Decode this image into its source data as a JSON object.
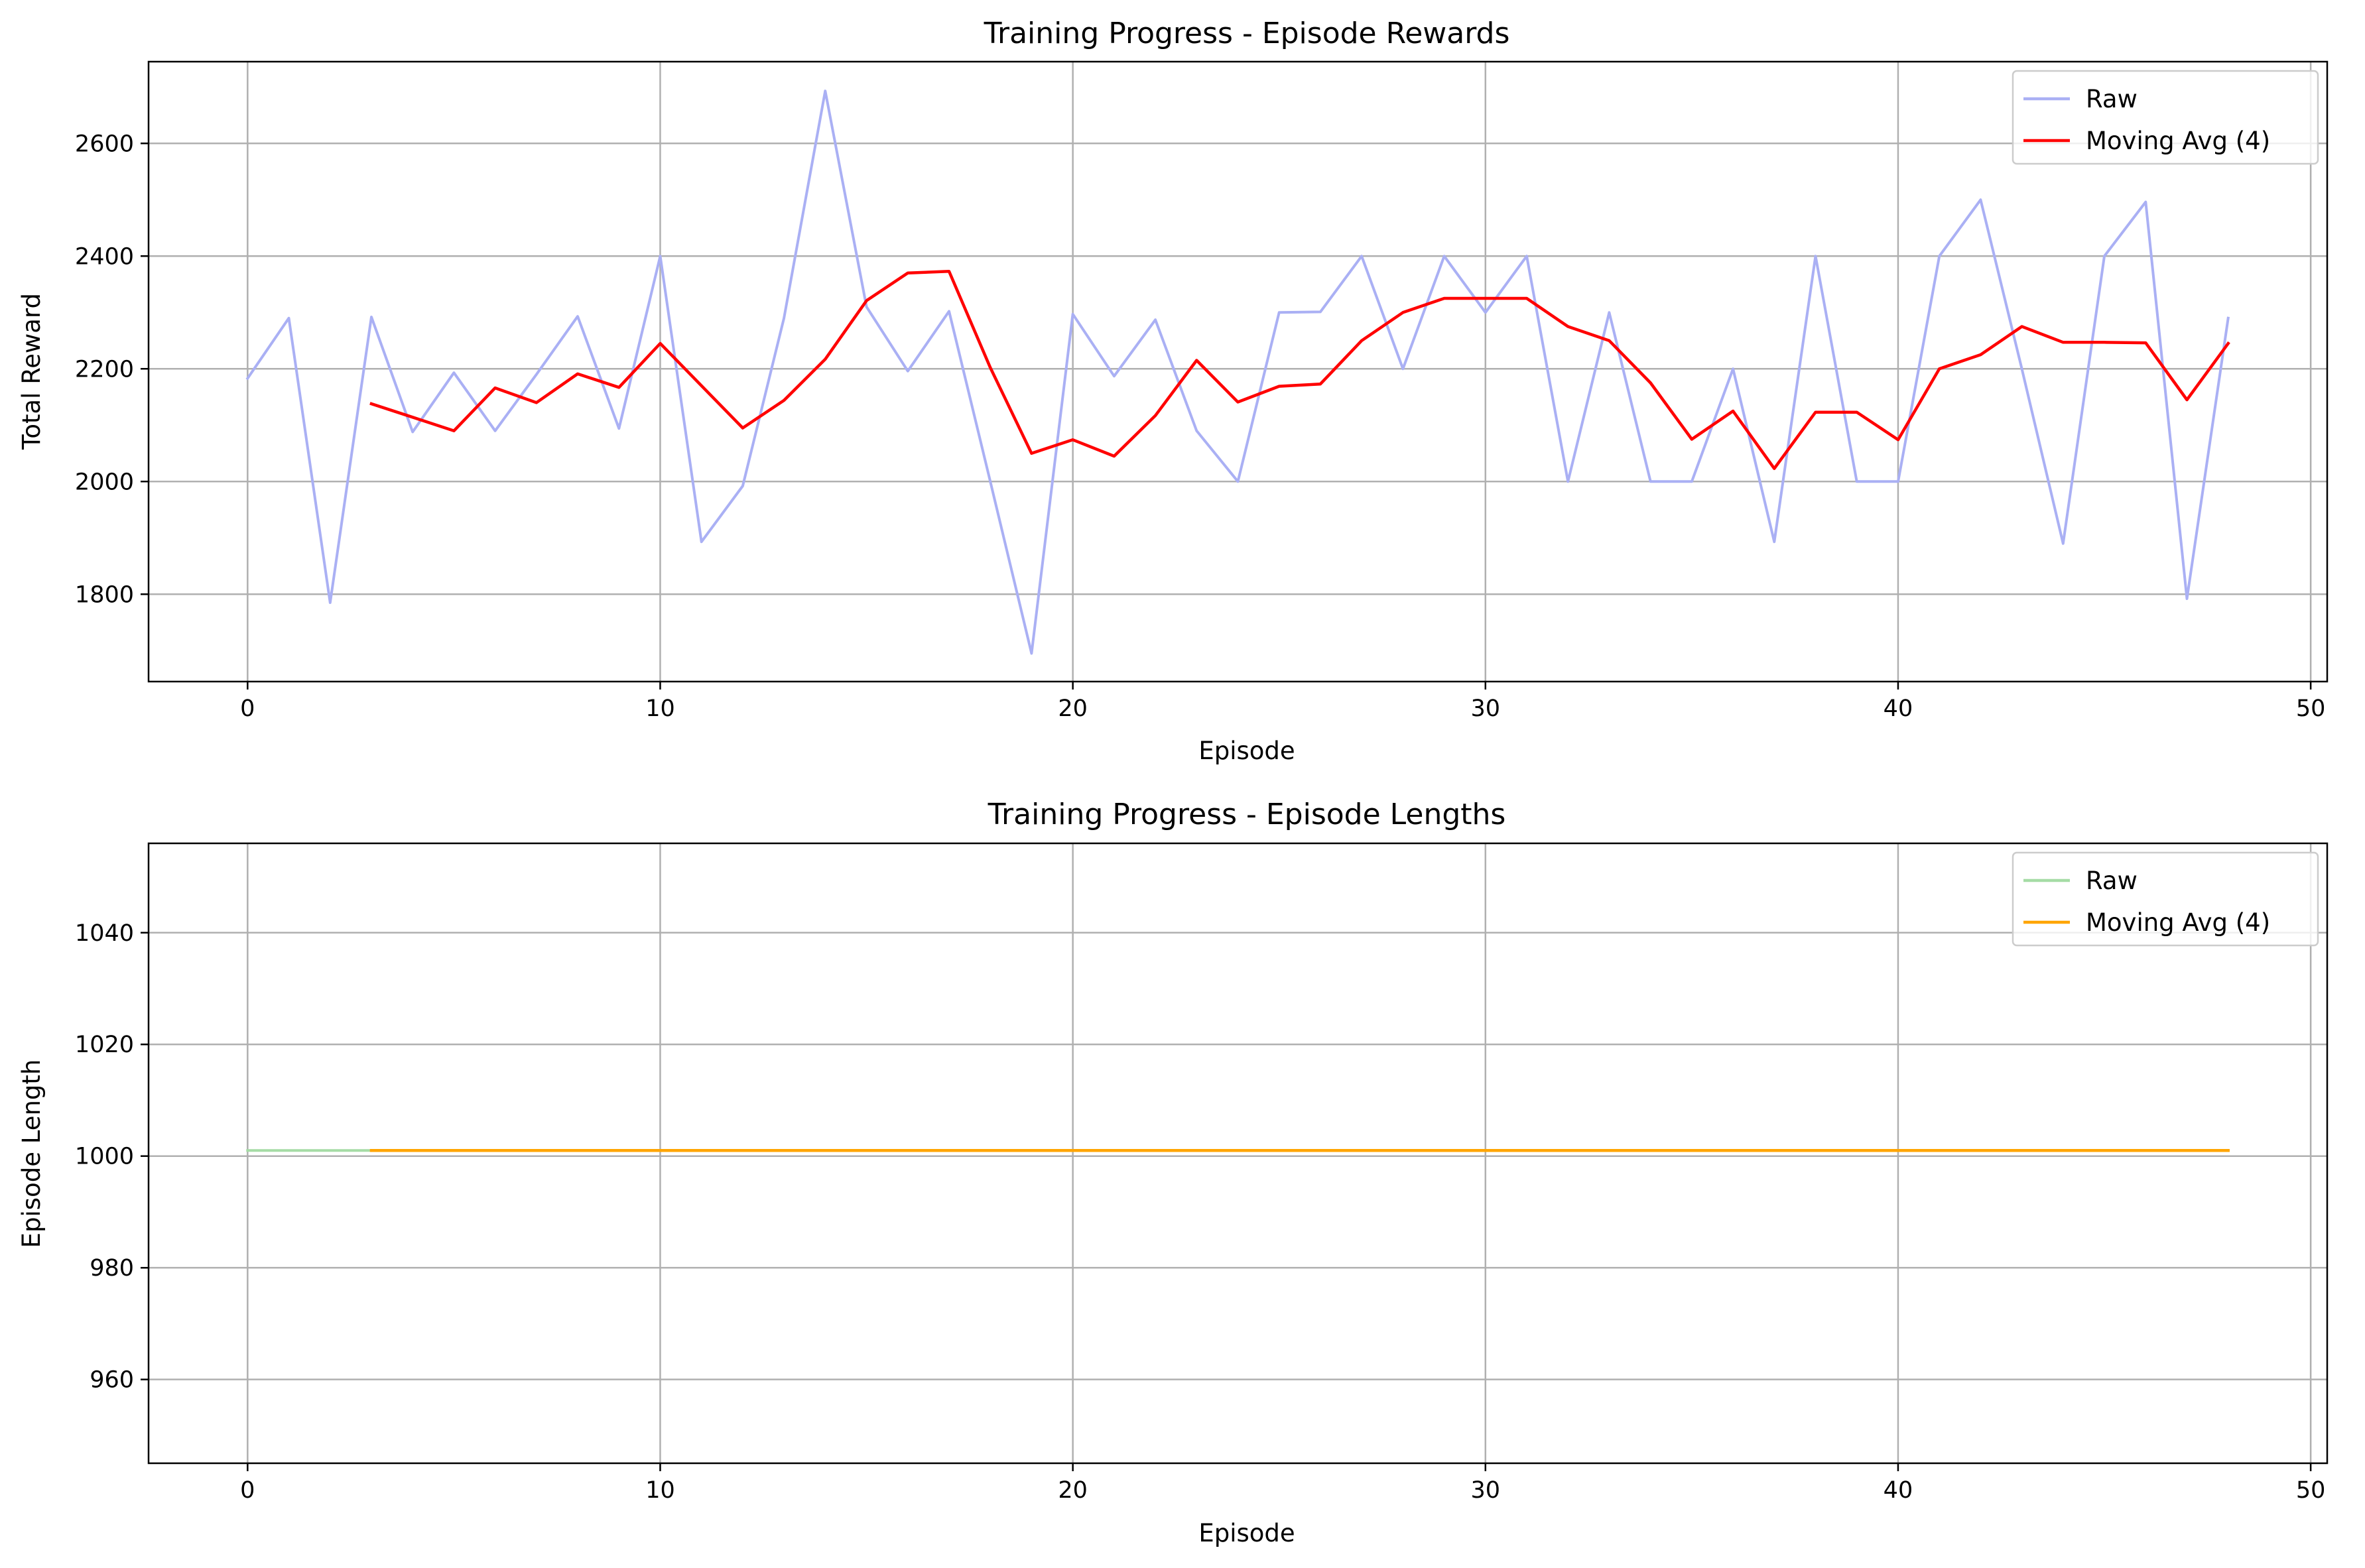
{
  "chart_data": [
    {
      "type": "line",
      "title": "Training Progress - Episode Rewards",
      "xlabel": "Episode",
      "ylabel": "Total Reward",
      "xlim": [
        -2.4,
        50.4
      ],
      "ylim": [
        1645,
        2745
      ],
      "xticks": [
        0,
        10,
        20,
        30,
        40,
        50
      ],
      "yticks": [
        1800,
        2000,
        2200,
        2400,
        2600
      ],
      "grid": true,
      "legend_position": "top-right",
      "series": [
        {
          "name": "Raw",
          "color": "#aab0f4",
          "x": [
            0,
            1,
            2,
            3,
            4,
            5,
            6,
            7,
            8,
            9,
            10,
            11,
            12,
            13,
            14,
            15,
            16,
            17,
            18,
            19,
            20,
            21,
            22,
            23,
            24,
            25,
            26,
            27,
            28,
            29,
            30,
            31,
            32,
            33,
            34,
            35,
            36,
            37,
            38,
            39,
            40,
            41,
            42,
            43,
            44,
            45,
            46,
            47,
            48
          ],
          "values": [
            2183,
            2290,
            1785,
            2292,
            2088,
            2193,
            2090,
            2190,
            2293,
            2094,
            2400,
            1893,
            1992,
            2290,
            2693,
            2310,
            2196,
            2302,
            2000,
            1695,
            2297,
            2187,
            2287,
            2090,
            2000,
            2300,
            2301,
            2400,
            2200,
            2400,
            2300,
            2400,
            2000,
            2300,
            2000,
            2000,
            2200,
            1893,
            2400,
            2000,
            2000,
            2400,
            2500,
            2200,
            1890,
            2400,
            2496,
            1792,
            2290
          ]
        },
        {
          "name": "Moving Avg (4)",
          "color": "#ff0000",
          "x": [
            3,
            4,
            5,
            6,
            7,
            8,
            9,
            10,
            11,
            12,
            13,
            14,
            15,
            16,
            17,
            18,
            19,
            20,
            21,
            22,
            23,
            24,
            25,
            26,
            27,
            28,
            29,
            30,
            31,
            32,
            33,
            34,
            35,
            36,
            37,
            38,
            39,
            40,
            41,
            42,
            43,
            44,
            45,
            46,
            47,
            48
          ],
          "values": [
            2138,
            2114,
            2090,
            2166,
            2140,
            2191,
            2167,
            2245,
            2170,
            2095,
            2144,
            2217,
            2321,
            2370,
            2373,
            2202,
            2050,
            2074,
            2045,
            2117,
            2215,
            2141,
            2169,
            2173,
            2250,
            2300,
            2325,
            2325,
            2325,
            2275,
            2250,
            2175,
            2075,
            2125,
            2023,
            2123,
            2123,
            2074,
            2200,
            2225,
            2275,
            2247,
            2247,
            2246,
            2145,
            2245
          ]
        }
      ]
    },
    {
      "type": "line",
      "title": "Training Progress - Episode Lengths",
      "xlabel": "Episode",
      "ylabel": "Episode Length",
      "xlim": [
        -2.4,
        50.4
      ],
      "ylim": [
        945,
        1056
      ],
      "xticks": [
        0,
        10,
        20,
        30,
        40,
        50
      ],
      "yticks": [
        960,
        980,
        1000,
        1020,
        1040
      ],
      "grid": true,
      "legend_position": "top-right",
      "series": [
        {
          "name": "Raw",
          "color": "#a5dca5",
          "x": [
            0,
            1,
            2,
            3,
            4,
            5,
            6,
            7,
            8,
            9,
            10,
            11,
            12,
            13,
            14,
            15,
            16,
            17,
            18,
            19,
            20,
            21,
            22,
            23,
            24,
            25,
            26,
            27,
            28,
            29,
            30,
            31,
            32,
            33,
            34,
            35,
            36,
            37,
            38,
            39,
            40,
            41,
            42,
            43,
            44,
            45,
            46,
            47,
            48
          ],
          "values": [
            1001,
            1001,
            1001,
            1001,
            1001,
            1001,
            1001,
            1001,
            1001,
            1001,
            1001,
            1001,
            1001,
            1001,
            1001,
            1001,
            1001,
            1001,
            1001,
            1001,
            1001,
            1001,
            1001,
            1001,
            1001,
            1001,
            1001,
            1001,
            1001,
            1001,
            1001,
            1001,
            1001,
            1001,
            1001,
            1001,
            1001,
            1001,
            1001,
            1001,
            1001,
            1001,
            1001,
            1001,
            1001,
            1001,
            1001,
            1001,
            1001
          ]
        },
        {
          "name": "Moving Avg (4)",
          "color": "#ffa500",
          "x": [
            3,
            4,
            5,
            6,
            7,
            8,
            9,
            10,
            11,
            12,
            13,
            14,
            15,
            16,
            17,
            18,
            19,
            20,
            21,
            22,
            23,
            24,
            25,
            26,
            27,
            28,
            29,
            30,
            31,
            32,
            33,
            34,
            35,
            36,
            37,
            38,
            39,
            40,
            41,
            42,
            43,
            44,
            45,
            46,
            47,
            48
          ],
          "values": [
            1001,
            1001,
            1001,
            1001,
            1001,
            1001,
            1001,
            1001,
            1001,
            1001,
            1001,
            1001,
            1001,
            1001,
            1001,
            1001,
            1001,
            1001,
            1001,
            1001,
            1001,
            1001,
            1001,
            1001,
            1001,
            1001,
            1001,
            1001,
            1001,
            1001,
            1001,
            1001,
            1001,
            1001,
            1001,
            1001,
            1001,
            1001,
            1001,
            1001,
            1001,
            1001,
            1001,
            1001,
            1001,
            1001
          ]
        }
      ]
    }
  ]
}
